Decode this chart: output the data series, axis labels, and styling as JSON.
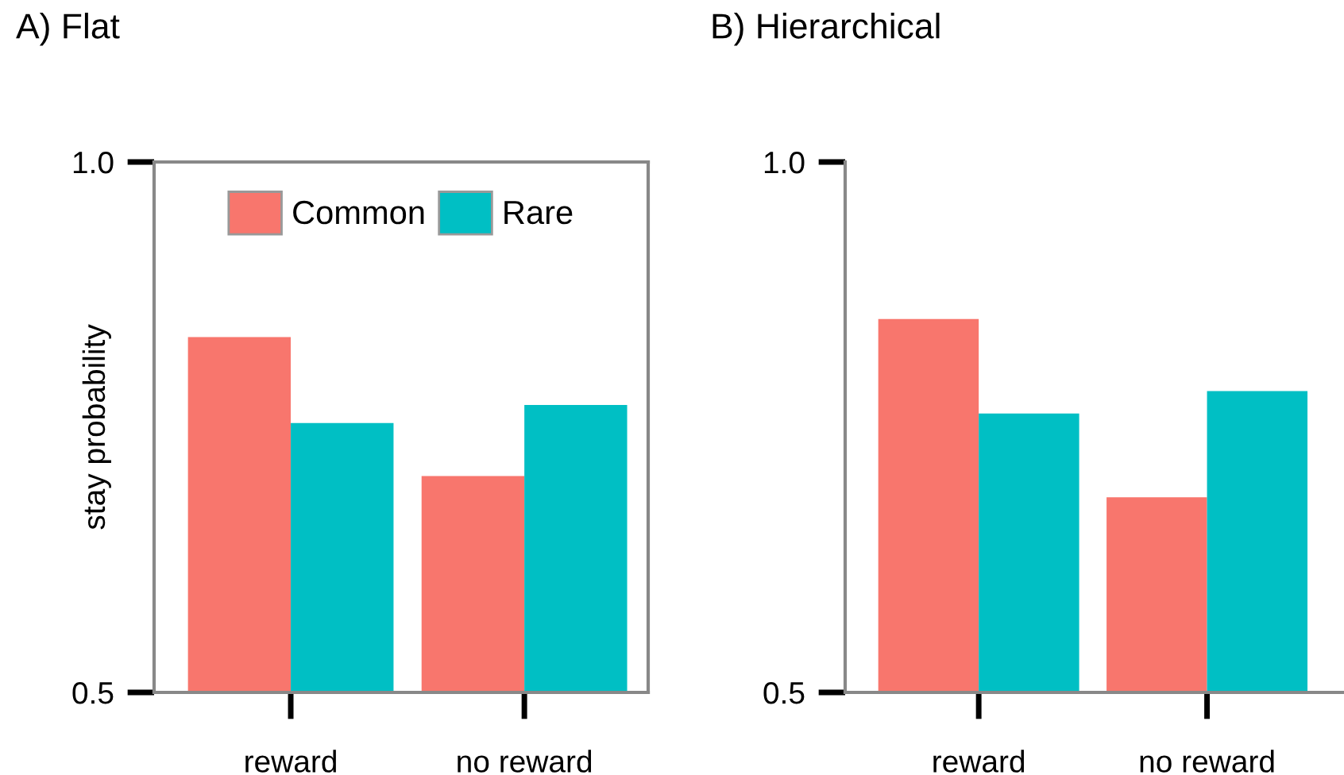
{
  "chart_data": [
    {
      "type": "bar",
      "title": "A) Flat",
      "ylabel": "stay probability",
      "categories": [
        "reward",
        "no reward"
      ],
      "series": [
        {
          "name": "Common",
          "color": "#f8766d",
          "values": [
            0.835,
            0.704
          ]
        },
        {
          "name": "Rare",
          "color": "#00bfc4",
          "values": [
            0.754,
            0.771
          ]
        }
      ],
      "ylim": [
        0.5,
        1.0
      ],
      "yticks": [
        0.5,
        {
          "value": 1,
          "label": "1.0"
        }
      ],
      "legend": "top",
      "grid": false
    },
    {
      "type": "bar",
      "title": "B) Hierarchical",
      "categories": [
        "reward",
        "no reward"
      ],
      "series": [
        {
          "color": "#f8766d",
          "values": [
            0.852,
            0.684
          ]
        },
        {
          "color": "#00bfc4",
          "values": [
            0.763,
            0.784
          ]
        }
      ],
      "ylim": [
        0.5,
        1.0
      ],
      "yticks": [
        0.5,
        {
          "value": 1,
          "label": "1.0"
        }
      ],
      "grid": false
    }
  ]
}
